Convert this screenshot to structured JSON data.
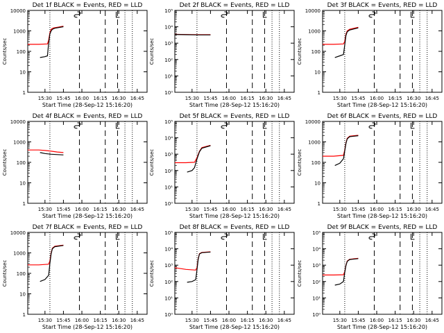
{
  "chart_data": [
    {
      "type": "line",
      "title": "Det 1f BLACK = Events, RED = LLD",
      "xlabel": "Start Time (28-Sep-12 15:16:20)",
      "ylabel": "Counts/sec",
      "y_scale": "log",
      "ylim": [
        1,
        10000
      ],
      "yticks": [
        "1",
        "10",
        "100",
        "1000",
        "10000"
      ],
      "xlim": [
        "15:16",
        "16:53"
      ],
      "xticks": [
        "15:30",
        "15:45",
        "16:00",
        "16:15",
        "16:30",
        "16:45"
      ],
      "series": [
        {
          "color": "#ff0000",
          "x": [
            "15:16",
            "15:25",
            "15:32",
            "15:33",
            "15:34",
            "15:35",
            "15:36",
            "15:37",
            "15:40",
            "15:45"
          ],
          "values": [
            220,
            220,
            230,
            350,
            800,
            1200,
            1300,
            1400,
            1500,
            1700
          ]
        },
        {
          "color": "#000000",
          "x": [
            "15:26",
            "15:30",
            "15:32",
            "15:33",
            "15:34",
            "15:35",
            "15:36",
            "15:38",
            "15:45"
          ],
          "values": [
            50,
            55,
            60,
            250,
            700,
            1000,
            1200,
            1350,
            1600
          ]
        }
      ],
      "markers": {
        "dotted": [
          "15:34",
          "16:35",
          "16:41"
        ],
        "dashed": [
          "15:58",
          "16:19",
          "16:29"
        ]
      }
    },
    {
      "type": "line",
      "title": "Det 2f BLACK = Events, RED = LLD",
      "xlabel": "Start Time (28-Sep-12 15:16:20)",
      "ylabel": "Counts/sec",
      "y_scale": "log",
      "ylim": [
        1,
        100000
      ],
      "yticks": [
        "10⁰",
        "10¹",
        "10²",
        "10³",
        "10⁴",
        "10⁵"
      ],
      "xlim": [
        "15:16",
        "16:53"
      ],
      "xticks": [
        "15:30",
        "15:45",
        "16:00",
        "16:15",
        "16:30",
        "16:45"
      ],
      "series": [
        {
          "color": "#ff0000",
          "x": [
            "15:16",
            "15:25",
            "15:35",
            "15:45"
          ],
          "values": [
            3500,
            3400,
            3300,
            3300
          ]
        },
        {
          "color": "#000000",
          "x": [
            "15:16",
            "15:25",
            "15:35",
            "15:45"
          ],
          "values": [
            3400,
            3300,
            3200,
            3200
          ]
        }
      ],
      "markers": {
        "dotted": [
          "15:34",
          "16:35",
          "16:41"
        ],
        "dashed": [
          "15:58",
          "16:19",
          "16:29"
        ]
      }
    },
    {
      "type": "line",
      "title": "Det 3f BLACK = Events, RED = LLD",
      "xlabel": "Start Time (28-Sep-12 15:16:20)",
      "ylabel": "Counts/sec",
      "y_scale": "log",
      "ylim": [
        1,
        10000
      ],
      "yticks": [
        "1",
        "10",
        "100",
        "1000",
        "10000"
      ],
      "xlim": [
        "15:16",
        "16:53"
      ],
      "xticks": [
        "15:30",
        "15:45",
        "16:00",
        "16:15",
        "16:30",
        "16:45"
      ],
      "series": [
        {
          "color": "#ff0000",
          "x": [
            "15:16",
            "15:25",
            "15:33",
            "15:34",
            "15:35",
            "15:36",
            "15:38",
            "15:45"
          ],
          "values": [
            220,
            220,
            230,
            300,
            700,
            1000,
            1200,
            1500
          ]
        },
        {
          "color": "#000000",
          "x": [
            "15:26",
            "15:30",
            "15:33",
            "15:34",
            "15:35",
            "15:36",
            "15:38",
            "15:45"
          ],
          "values": [
            50,
            60,
            70,
            200,
            600,
            900,
            1100,
            1400
          ]
        }
      ],
      "markers": {
        "dotted": [
          "15:34",
          "16:35",
          "16:41"
        ],
        "dashed": [
          "15:58",
          "16:19",
          "16:29"
        ]
      }
    },
    {
      "type": "line",
      "title": "Det 4f BLACK = Events, RED = LLD",
      "xlabel": "Start Time (28-Sep-12 15:16:20)",
      "ylabel": "Counts/sec",
      "y_scale": "log",
      "ylim": [
        1,
        10000
      ],
      "yticks": [
        "1",
        "10",
        "100",
        "1000",
        "10000"
      ],
      "xlim": [
        "15:16",
        "16:53"
      ],
      "xticks": [
        "15:30",
        "15:45",
        "16:00",
        "16:15",
        "16:30",
        "16:45"
      ],
      "series": [
        {
          "color": "#ff0000",
          "x": [
            "15:16",
            "15:25",
            "15:30",
            "15:35",
            "15:40",
            "15:45"
          ],
          "values": [
            400,
            400,
            380,
            350,
            320,
            300
          ]
        },
        {
          "color": "#000000",
          "x": [
            "15:26",
            "15:30",
            "15:35",
            "15:40",
            "15:45"
          ],
          "values": [
            300,
            270,
            250,
            240,
            230
          ]
        }
      ],
      "markers": {
        "dotted": [
          "15:34",
          "16:35",
          "16:41"
        ],
        "dashed": [
          "15:58",
          "16:19",
          "16:29"
        ]
      }
    },
    {
      "type": "line",
      "title": "Det 5f BLACK = Events, RED = LLD",
      "xlabel": "Start Time (28-Sep-12 15:16:20)",
      "ylabel": "Counts/sec",
      "y_scale": "log",
      "ylim": [
        1,
        100000
      ],
      "yticks": [
        "10⁰",
        "10¹",
        "10²",
        "10³",
        "10⁴",
        "10⁵"
      ],
      "xlim": [
        "15:16",
        "16:53"
      ],
      "xticks": [
        "15:30",
        "15:45",
        "16:00",
        "16:15",
        "16:30",
        "16:45"
      ],
      "series": [
        {
          "color": "#ff0000",
          "x": [
            "15:16",
            "15:25",
            "15:32",
            "15:34",
            "15:36",
            "15:38",
            "15:45"
          ],
          "values": [
            300,
            300,
            320,
            600,
            1500,
            2500,
            3500
          ]
        },
        {
          "color": "#000000",
          "x": [
            "15:26",
            "15:30",
            "15:32",
            "15:34",
            "15:36",
            "15:38",
            "15:45"
          ],
          "values": [
            80,
            100,
            150,
            500,
            1400,
            2300,
            3300
          ]
        }
      ],
      "markers": {
        "dotted": [
          "15:34",
          "16:35",
          "16:41"
        ],
        "dashed": [
          "15:58",
          "16:19",
          "16:29"
        ]
      }
    },
    {
      "type": "line",
      "title": "Det 6f BLACK = Events, RED = LLD",
      "xlabel": "Start Time (28-Sep-12 15:16:20)",
      "ylabel": "Counts/sec",
      "y_scale": "log",
      "ylim": [
        1,
        10000
      ],
      "yticks": [
        "1",
        "10",
        "100",
        "1000",
        "10000"
      ],
      "xlim": [
        "15:16",
        "16:53"
      ],
      "xticks": [
        "15:30",
        "15:45",
        "16:00",
        "16:15",
        "16:30",
        "16:45"
      ],
      "series": [
        {
          "color": "#ff0000",
          "x": [
            "15:16",
            "15:25",
            "15:33",
            "15:34",
            "15:35",
            "15:36",
            "15:38",
            "15:45"
          ],
          "values": [
            200,
            200,
            220,
            400,
            900,
            1500,
            1900,
            2100
          ]
        },
        {
          "color": "#000000",
          "x": [
            "15:26",
            "15:30",
            "15:33",
            "15:34",
            "15:35",
            "15:36",
            "15:38",
            "15:45"
          ],
          "values": [
            70,
            90,
            150,
            350,
            850,
            1400,
            1800,
            2000
          ]
        }
      ],
      "markers": {
        "dotted": [
          "15:34",
          "16:35",
          "16:41"
        ],
        "dashed": [
          "15:58",
          "16:19",
          "16:29"
        ]
      }
    },
    {
      "type": "line",
      "title": "Det 7f BLACK = Events, RED = LLD",
      "xlabel": "Start Time (28-Sep-12 15:16:20)",
      "ylabel": "Counts/sec",
      "y_scale": "log",
      "ylim": [
        1,
        10000
      ],
      "yticks": [
        "1",
        "10",
        "100",
        "1000",
        "10000"
      ],
      "xlim": [
        "15:16",
        "16:53"
      ],
      "xticks": [
        "15:30",
        "15:45",
        "16:00",
        "16:15",
        "16:30",
        "16:45"
      ],
      "series": [
        {
          "color": "#ff0000",
          "x": [
            "15:16",
            "15:25",
            "15:33",
            "15:34",
            "15:35",
            "15:36",
            "15:38",
            "15:45"
          ],
          "values": [
            260,
            260,
            280,
            400,
            1000,
            1700,
            2100,
            2400
          ]
        },
        {
          "color": "#000000",
          "x": [
            "15:26",
            "15:30",
            "15:33",
            "15:34",
            "15:35",
            "15:36",
            "15:38",
            "15:45"
          ],
          "values": [
            40,
            50,
            80,
            300,
            900,
            1600,
            2000,
            2300
          ]
        }
      ],
      "markers": {
        "dotted": [
          "15:34",
          "16:35",
          "16:41"
        ],
        "dashed": [
          "15:58",
          "16:19",
          "16:29"
        ]
      }
    },
    {
      "type": "line",
      "title": "Det 8f BLACK = Events, RED = LLD",
      "xlabel": "Start Time (28-Sep-12 15:16:20)",
      "ylabel": "Counts/sec",
      "y_scale": "log",
      "ylim": [
        1,
        100000
      ],
      "yticks": [
        "10⁰",
        "10¹",
        "10²",
        "10³",
        "10⁴",
        "10⁵"
      ],
      "xlim": [
        "15:16",
        "16:53"
      ],
      "xticks": [
        "15:30",
        "15:45",
        "16:00",
        "16:15",
        "16:30",
        "16:45"
      ],
      "series": [
        {
          "color": "#ff0000",
          "x": [
            "15:16",
            "15:25",
            "15:33",
            "15:34",
            "15:35",
            "15:36",
            "15:38",
            "15:45"
          ],
          "values": [
            700,
            550,
            500,
            700,
            2500,
            5000,
            6000,
            6500
          ]
        },
        {
          "color": "#000000",
          "x": [
            "15:26",
            "15:30",
            "15:33",
            "15:34",
            "15:35",
            "15:36",
            "15:38",
            "15:45"
          ],
          "values": [
            90,
            100,
            130,
            500,
            2300,
            4800,
            5800,
            6300
          ]
        }
      ],
      "markers": {
        "dotted": [
          "15:34",
          "16:35",
          "16:41"
        ],
        "dashed": [
          "15:58",
          "16:19",
          "16:29"
        ]
      }
    },
    {
      "type": "line",
      "title": "Det 9f BLACK = Events, RED = LLD",
      "xlabel": "Start Time (28-Sep-12 15:16:20)",
      "ylabel": "Counts/sec",
      "y_scale": "log",
      "ylim": [
        1,
        100000
      ],
      "yticks": [
        "10⁰",
        "10¹",
        "10²",
        "10³",
        "10⁴",
        "10⁵"
      ],
      "xlim": [
        "15:16",
        "16:53"
      ],
      "xticks": [
        "15:30",
        "15:45",
        "16:00",
        "16:15",
        "16:30",
        "16:45"
      ],
      "series": [
        {
          "color": "#ff0000",
          "x": [
            "15:16",
            "15:25",
            "15:33",
            "15:34",
            "15:35",
            "15:36",
            "15:38",
            "15:45"
          ],
          "values": [
            250,
            250,
            260,
            400,
            1000,
            1800,
            2300,
            2600
          ]
        },
        {
          "color": "#000000",
          "x": [
            "15:26",
            "15:30",
            "15:33",
            "15:34",
            "15:35",
            "15:36",
            "15:38",
            "15:45"
          ],
          "values": [
            60,
            70,
            100,
            350,
            950,
            1700,
            2200,
            2500
          ]
        }
      ],
      "markers": {
        "dotted": [
          "15:34",
          "16:35",
          "16:41"
        ],
        "dashed": [
          "15:58",
          "16:19",
          "16:29"
        ]
      }
    }
  ]
}
